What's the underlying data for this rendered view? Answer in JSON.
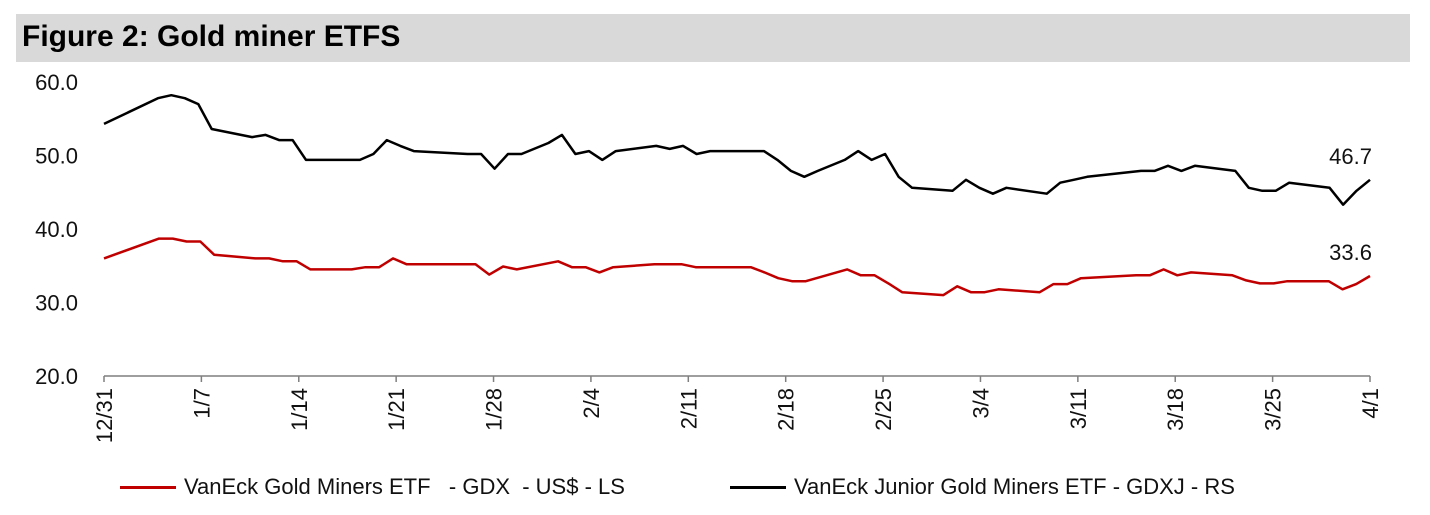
{
  "title": "Figure 2: Gold miner ETFS",
  "colors": {
    "gdx": "#c00000",
    "gdxj": "#000000",
    "title_bg": "#d9d9d9"
  },
  "chart_data": {
    "type": "line",
    "yticks": [
      "60.0",
      "50.0",
      "40.0",
      "30.0",
      "20.0"
    ],
    "ylim": [
      20,
      60
    ],
    "x_range": [
      0,
      91
    ],
    "xticks": [
      {
        "x": 0,
        "label": "12/31"
      },
      {
        "x": 7,
        "label": "1/7"
      },
      {
        "x": 14,
        "label": "1/14"
      },
      {
        "x": 21,
        "label": "1/21"
      },
      {
        "x": 28,
        "label": "1/28"
      },
      {
        "x": 35,
        "label": "2/4"
      },
      {
        "x": 42,
        "label": "2/11"
      },
      {
        "x": 49,
        "label": "2/18"
      },
      {
        "x": 56,
        "label": "2/25"
      },
      {
        "x": 63,
        "label": "3/4"
      },
      {
        "x": 70,
        "label": "3/11"
      },
      {
        "x": 77,
        "label": "3/18"
      },
      {
        "x": 84,
        "label": "3/25"
      },
      {
        "x": 91,
        "label": "4/1"
      }
    ],
    "series": [
      {
        "name": "VanEck Gold Miners ETF   - GDX  - US$ - LS",
        "key": "gdx",
        "end_label": "33.6",
        "points": [
          [
            0,
            36.0
          ],
          [
            4,
            38.7
          ],
          [
            5,
            38.7
          ],
          [
            6,
            38.3
          ],
          [
            7,
            38.3
          ],
          [
            8,
            36.5
          ],
          [
            11,
            36.0
          ],
          [
            12,
            36.0
          ],
          [
            13,
            35.6
          ],
          [
            14,
            35.6
          ],
          [
            15,
            34.5
          ],
          [
            18,
            34.5
          ],
          [
            19,
            34.8
          ],
          [
            20,
            34.8
          ],
          [
            21,
            36.0
          ],
          [
            22,
            35.2
          ],
          [
            27,
            35.2
          ],
          [
            28,
            33.8
          ],
          [
            29,
            34.9
          ],
          [
            30,
            34.5
          ],
          [
            33,
            35.6
          ],
          [
            34,
            34.8
          ],
          [
            35,
            34.8
          ],
          [
            36,
            34.1
          ],
          [
            37,
            34.8
          ],
          [
            40,
            35.2
          ],
          [
            42,
            35.2
          ],
          [
            43,
            34.8
          ],
          [
            47,
            34.8
          ],
          [
            48,
            34.1
          ],
          [
            49,
            33.3
          ],
          [
            50,
            32.9
          ],
          [
            51,
            32.9
          ],
          [
            54,
            34.5
          ],
          [
            55,
            33.7
          ],
          [
            56,
            33.7
          ],
          [
            57,
            32.6
          ],
          [
            58,
            31.4
          ],
          [
            61,
            31.0
          ],
          [
            62,
            32.2
          ],
          [
            63,
            31.4
          ],
          [
            64,
            31.4
          ],
          [
            65,
            31.8
          ],
          [
            68,
            31.4
          ],
          [
            69,
            32.5
          ],
          [
            70,
            32.5
          ],
          [
            71,
            33.3
          ],
          [
            75,
            33.7
          ],
          [
            76,
            33.7
          ],
          [
            77,
            34.5
          ],
          [
            78,
            33.7
          ],
          [
            79,
            34.1
          ],
          [
            82,
            33.7
          ],
          [
            83,
            33.0
          ],
          [
            84,
            32.6
          ],
          [
            85,
            32.6
          ],
          [
            86,
            32.9
          ],
          [
            89,
            32.9
          ],
          [
            90,
            31.8
          ],
          [
            91,
            32.5
          ],
          [
            92,
            33.6
          ]
        ]
      },
      {
        "name": "VanEck Junior Gold Miners ETF - GDXJ - RS",
        "key": "gdxj",
        "end_label": "46.7",
        "points": [
          [
            0,
            54.3
          ],
          [
            4,
            57.8
          ],
          [
            5,
            58.2
          ],
          [
            6,
            57.8
          ],
          [
            7,
            57.0
          ],
          [
            8,
            53.6
          ],
          [
            11,
            52.5
          ],
          [
            12,
            52.8
          ],
          [
            13,
            52.1
          ],
          [
            14,
            52.1
          ],
          [
            15,
            49.4
          ],
          [
            18,
            49.4
          ],
          [
            19,
            49.4
          ],
          [
            20,
            50.2
          ],
          [
            21,
            52.1
          ],
          [
            22,
            51.3
          ],
          [
            23,
            50.6
          ],
          [
            27,
            50.2
          ],
          [
            28,
            50.2
          ],
          [
            29,
            48.2
          ],
          [
            30,
            50.2
          ],
          [
            31,
            50.2
          ],
          [
            33,
            51.7
          ],
          [
            34,
            52.8
          ],
          [
            35,
            50.2
          ],
          [
            36,
            50.6
          ],
          [
            37,
            49.4
          ],
          [
            38,
            50.6
          ],
          [
            41,
            51.3
          ],
          [
            42,
            50.9
          ],
          [
            43,
            51.3
          ],
          [
            44,
            50.2
          ],
          [
            45,
            50.6
          ],
          [
            49,
            50.6
          ],
          [
            50,
            49.4
          ],
          [
            51,
            47.9
          ],
          [
            52,
            47.1
          ],
          [
            53,
            47.9
          ],
          [
            55,
            49.4
          ],
          [
            56,
            50.6
          ],
          [
            57,
            49.4
          ],
          [
            58,
            50.2
          ],
          [
            59,
            47.1
          ],
          [
            60,
            45.6
          ],
          [
            63,
            45.2
          ],
          [
            64,
            46.7
          ],
          [
            65,
            45.6
          ],
          [
            66,
            44.8
          ],
          [
            67,
            45.6
          ],
          [
            70,
            44.8
          ],
          [
            71,
            46.3
          ],
          [
            72,
            46.7
          ],
          [
            73,
            47.1
          ],
          [
            77,
            47.9
          ],
          [
            78,
            47.9
          ],
          [
            79,
            48.6
          ],
          [
            80,
            47.9
          ],
          [
            81,
            48.6
          ],
          [
            84,
            47.9
          ],
          [
            85,
            45.6
          ],
          [
            86,
            45.2
          ],
          [
            87,
            45.2
          ],
          [
            88,
            46.3
          ],
          [
            91,
            45.6
          ],
          [
            92,
            43.3
          ],
          [
            93,
            45.2
          ],
          [
            94,
            46.7
          ]
        ]
      }
    ]
  }
}
